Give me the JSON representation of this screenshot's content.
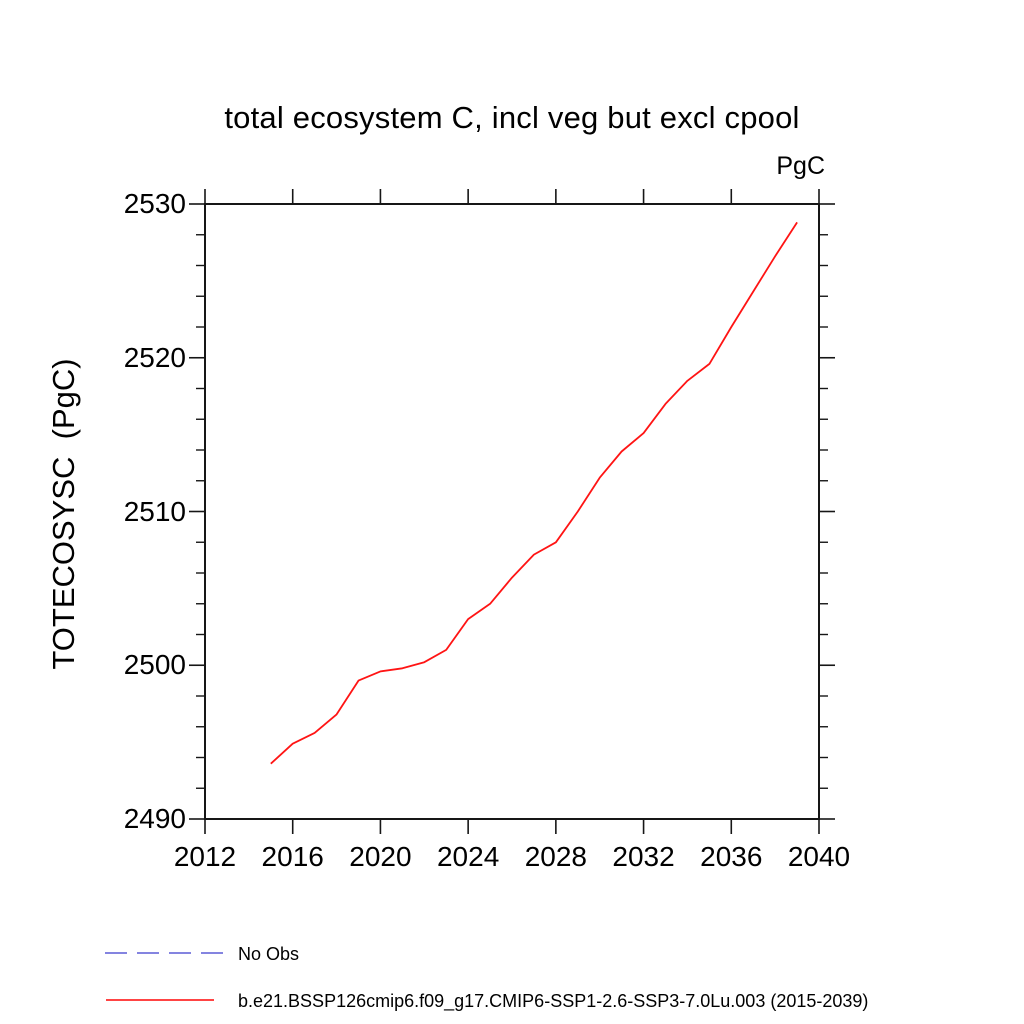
{
  "chart_data": {
    "type": "line",
    "title": "total ecosystem C, incl veg but excl cpool",
    "unit": "PgC",
    "ylabel": "TOTECOSYSC  (PgC)",
    "xlabel": "",
    "xlim": [
      2012,
      2040
    ],
    "ylim": [
      2490,
      2530
    ],
    "xticks": [
      2012,
      2016,
      2020,
      2024,
      2028,
      2032,
      2036,
      2040
    ],
    "yticks": [
      2490,
      2500,
      2510,
      2520,
      2530
    ],
    "y_minor_step": 2,
    "grid": false,
    "legend_position": "below-left",
    "x": [
      2015,
      2016,
      2017,
      2018,
      2019,
      2020,
      2021,
      2022,
      2023,
      2024,
      2025,
      2026,
      2027,
      2028,
      2029,
      2030,
      2031,
      2032,
      2033,
      2034,
      2035,
      2036,
      2037,
      2038,
      2039
    ],
    "series": [
      {
        "name": "b.e21.BSSP126cmip6.f09_g17.CMIP6-SSP1-2.6-SSP3-7.0Lu.003 (2015-2039)",
        "color": "#ff1414",
        "values": [
          2493.6,
          2494.9,
          2495.6,
          2496.8,
          2499.0,
          2499.6,
          2499.8,
          2500.2,
          2501.0,
          2503.0,
          2504.0,
          2505.7,
          2507.2,
          2508.0,
          2510.0,
          2512.2,
          2513.9,
          2515.1,
          2517.0,
          2518.5,
          2519.6,
          2522.0,
          2524.3,
          2526.6,
          2528.8
        ]
      }
    ]
  },
  "legend": {
    "items": [
      {
        "label": "No Obs",
        "style": "dashed",
        "color": "#8484e0"
      },
      {
        "label": "b.e21.BSSP126cmip6.f09_g17.CMIP6-SSP1-2.6-SSP3-7.0Lu.003 (2015-2039)",
        "style": "solid",
        "color": "#ff4444"
      }
    ]
  },
  "frame_color": "#161616"
}
